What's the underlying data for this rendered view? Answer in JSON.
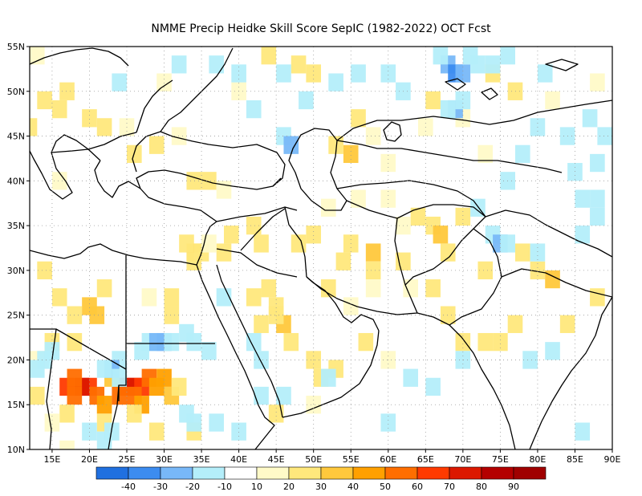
{
  "title": "NMME Precip Heidke Skill Score SepIC (1982-2022) OCT Fcst",
  "map": {
    "lon_range": [
      12,
      90
    ],
    "lat_range": [
      10,
      55
    ],
    "lon_ticks": [
      {
        "value": 15,
        "label": "15E"
      },
      {
        "value": 20,
        "label": "20E"
      },
      {
        "value": 25,
        "label": "25E"
      },
      {
        "value": 30,
        "label": "30E"
      },
      {
        "value": 35,
        "label": "35E"
      },
      {
        "value": 40,
        "label": "40E"
      },
      {
        "value": 45,
        "label": "45E"
      },
      {
        "value": 50,
        "label": "50E"
      },
      {
        "value": 55,
        "label": "55E"
      },
      {
        "value": 60,
        "label": "60E"
      },
      {
        "value": 65,
        "label": "65E"
      },
      {
        "value": 70,
        "label": "70E"
      },
      {
        "value": 75,
        "label": "75E"
      },
      {
        "value": 80,
        "label": "80E"
      },
      {
        "value": 85,
        "label": "85E"
      },
      {
        "value": 90,
        "label": "90E"
      }
    ],
    "lat_ticks": [
      {
        "value": 10,
        "label": "10N"
      },
      {
        "value": 15,
        "label": "15N"
      },
      {
        "value": 20,
        "label": "20N"
      },
      {
        "value": 25,
        "label": "25N"
      },
      {
        "value": 30,
        "label": "30N"
      },
      {
        "value": 35,
        "label": "35N"
      },
      {
        "value": 40,
        "label": "40N"
      },
      {
        "value": 45,
        "label": "45N"
      },
      {
        "value": 50,
        "label": "50N"
      },
      {
        "value": 55,
        "label": "55N"
      }
    ],
    "colors": {
      "-40": "#2070e0",
      "-30": "#3c8cf0",
      "-20": "#78b8f8",
      "-10": "#b4eefa",
      "10": "#fffac8",
      "20": "#ffe87c",
      "30": "#ffc83c",
      "40": "#ffa000",
      "50": "#ff6e00",
      "60": "#ff3a00",
      "70": "#dc1800",
      "80": "#b40000"
    },
    "cells": [
      [
        55,
        33,
        20
      ],
      [
        58,
        32,
        30
      ],
      [
        58,
        30,
        20
      ],
      [
        54,
        31,
        20
      ],
      [
        52,
        28,
        20
      ],
      [
        62,
        31,
        20
      ],
      [
        48,
        33,
        20
      ],
      [
        50,
        34,
        20
      ],
      [
        45,
        26,
        20
      ],
      [
        46,
        24,
        30
      ],
      [
        45,
        25,
        20
      ],
      [
        47,
        22,
        20
      ],
      [
        43,
        24,
        20
      ],
      [
        44,
        28,
        20
      ],
      [
        42,
        27,
        20
      ],
      [
        66,
        35,
        20
      ],
      [
        67,
        34,
        30
      ],
      [
        70,
        36,
        20
      ],
      [
        64,
        36,
        20
      ],
      [
        68,
        32,
        20
      ],
      [
        38,
        32,
        20
      ],
      [
        43,
        33,
        20
      ],
      [
        39,
        34,
        20
      ],
      [
        42,
        35,
        20
      ],
      [
        56,
        38,
        10
      ],
      [
        60,
        38,
        10
      ],
      [
        52,
        37,
        10
      ],
      [
        62,
        35,
        10
      ],
      [
        63,
        28,
        10
      ],
      [
        58,
        28,
        10
      ],
      [
        66,
        28,
        20
      ],
      [
        68,
        25,
        20
      ],
      [
        55,
        26,
        10
      ],
      [
        73,
        30,
        20
      ],
      [
        78,
        32,
        20
      ],
      [
        80,
        30,
        20
      ],
      [
        82,
        29,
        30
      ],
      [
        73,
        22,
        20
      ],
      [
        75,
        22,
        20
      ],
      [
        70,
        22,
        20
      ],
      [
        77,
        24,
        20
      ],
      [
        84,
        24,
        20
      ],
      [
        88,
        27,
        20
      ],
      [
        50,
        20,
        20
      ],
      [
        53,
        19,
        20
      ],
      [
        51,
        18,
        20
      ],
      [
        57,
        22,
        20
      ],
      [
        60,
        20,
        10
      ],
      [
        45,
        14,
        20
      ],
      [
        50,
        15,
        10
      ],
      [
        20,
        17,
        60
      ],
      [
        19,
        17,
        70
      ],
      [
        17,
        17,
        60
      ],
      [
        21,
        16,
        50
      ],
      [
        18,
        18,
        50
      ],
      [
        22,
        15,
        40
      ],
      [
        18,
        16,
        50
      ],
      [
        25,
        17,
        60
      ],
      [
        26,
        17,
        70
      ],
      [
        27,
        17,
        60
      ],
      [
        28,
        18,
        50
      ],
      [
        26,
        16,
        50
      ],
      [
        29,
        17,
        40
      ],
      [
        30,
        18,
        40
      ],
      [
        24,
        16,
        50
      ],
      [
        27,
        15,
        40
      ],
      [
        31,
        16,
        30
      ],
      [
        32,
        17,
        20
      ],
      [
        23,
        18,
        30
      ],
      [
        18,
        25,
        20
      ],
      [
        20,
        26,
        30
      ],
      [
        21,
        25,
        30
      ],
      [
        16,
        27,
        20
      ],
      [
        14,
        30,
        20
      ],
      [
        22,
        28,
        20
      ],
      [
        18,
        22,
        20
      ],
      [
        15,
        22,
        20
      ],
      [
        13,
        16,
        20
      ],
      [
        17,
        14,
        20
      ],
      [
        22,
        13,
        20
      ],
      [
        26,
        14,
        20
      ],
      [
        29,
        12,
        20
      ],
      [
        34,
        12,
        20
      ],
      [
        17,
        10,
        10
      ],
      [
        13,
        20,
        10
      ],
      [
        15,
        13,
        10
      ],
      [
        31,
        25,
        20
      ],
      [
        28,
        27,
        10
      ],
      [
        31,
        27,
        20
      ],
      [
        34,
        32,
        30
      ],
      [
        35,
        32,
        20
      ],
      [
        36,
        33,
        10
      ],
      [
        33,
        33,
        20
      ],
      [
        34,
        31,
        20
      ],
      [
        14,
        49,
        20
      ],
      [
        17,
        50,
        20
      ],
      [
        16,
        48,
        20
      ],
      [
        20,
        47,
        20
      ],
      [
        22,
        46,
        20
      ],
      [
        26,
        43,
        20
      ],
      [
        29,
        44,
        20
      ],
      [
        25,
        46,
        10
      ],
      [
        12,
        46,
        20
      ],
      [
        32,
        45,
        10
      ],
      [
        16,
        40,
        10
      ],
      [
        34,
        40,
        20
      ],
      [
        36,
        40,
        20
      ],
      [
        38,
        39,
        10
      ],
      [
        55,
        43,
        30
      ],
      [
        53,
        44,
        20
      ],
      [
        56,
        47,
        20
      ],
      [
        58,
        45,
        10
      ],
      [
        60,
        42,
        10
      ],
      [
        50,
        52,
        20
      ],
      [
        48,
        53,
        20
      ],
      [
        44,
        54,
        20
      ],
      [
        66,
        49,
        20
      ],
      [
        74,
        52,
        20
      ],
      [
        77,
        50,
        20
      ],
      [
        65,
        46,
        10
      ],
      [
        70,
        47,
        10
      ],
      [
        73,
        43,
        10
      ],
      [
        82,
        49,
        10
      ],
      [
        40,
        50,
        10
      ],
      [
        30,
        51,
        10
      ],
      [
        13,
        54,
        10
      ],
      [
        88,
        51,
        10
      ],
      [
        68,
        53,
        -20
      ],
      [
        69,
        52,
        -30
      ],
      [
        70,
        52,
        -20
      ],
      [
        67,
        54,
        -10
      ],
      [
        71,
        54,
        -10
      ],
      [
        72,
        53,
        -10
      ],
      [
        69,
        48,
        -20
      ],
      [
        68,
        48,
        -10
      ],
      [
        70,
        49,
        -10
      ],
      [
        74,
        53,
        -10
      ],
      [
        76,
        54,
        -10
      ],
      [
        81,
        52,
        -10
      ],
      [
        80,
        46,
        -10
      ],
      [
        84,
        45,
        -10
      ],
      [
        87,
        47,
        -10
      ],
      [
        89,
        45,
        -10
      ],
      [
        88,
        42,
        -10
      ],
      [
        85,
        41,
        -10
      ],
      [
        86,
        38,
        -10
      ],
      [
        88,
        38,
        -10
      ],
      [
        78,
        43,
        -10
      ],
      [
        76,
        40,
        -10
      ],
      [
        72,
        37,
        -10
      ],
      [
        74,
        34,
        -10
      ],
      [
        75,
        33,
        -20
      ],
      [
        76,
        33,
        -10
      ],
      [
        80,
        32,
        -10
      ],
      [
        86,
        34,
        -10
      ],
      [
        88,
        36,
        -10
      ],
      [
        60,
        52,
        -10
      ],
      [
        62,
        50,
        -10
      ],
      [
        56,
        52,
        -10
      ],
      [
        46,
        45,
        -10
      ],
      [
        47,
        44,
        -20
      ],
      [
        40,
        52,
        -10
      ],
      [
        32,
        53,
        -10
      ],
      [
        37,
        53,
        -10
      ],
      [
        53,
        51,
        -10
      ],
      [
        24,
        51,
        -10
      ],
      [
        46,
        52,
        -10
      ],
      [
        49,
        49,
        -10
      ],
      [
        42,
        48,
        -10
      ],
      [
        28,
        22,
        -10
      ],
      [
        29,
        22,
        -20
      ],
      [
        30,
        22,
        -20
      ],
      [
        31,
        22,
        -10
      ],
      [
        27,
        21,
        -10
      ],
      [
        24,
        20,
        -10
      ],
      [
        23,
        19,
        -20
      ],
      [
        24,
        18,
        -10
      ],
      [
        22,
        19,
        -10
      ],
      [
        33,
        23,
        -10
      ],
      [
        34,
        22,
        -10
      ],
      [
        36,
        21,
        -10
      ],
      [
        33,
        14,
        -10
      ],
      [
        34,
        13,
        -10
      ],
      [
        22,
        11,
        -10
      ],
      [
        20,
        12,
        -10
      ],
      [
        23,
        12,
        -10
      ],
      [
        14,
        20,
        -10
      ],
      [
        13,
        19,
        -10
      ],
      [
        15,
        21,
        -10
      ],
      [
        42,
        22,
        -10
      ],
      [
        43,
        20,
        -10
      ],
      [
        37,
        13,
        -10
      ],
      [
        40,
        12,
        -10
      ],
      [
        46,
        16,
        -10
      ],
      [
        52,
        18,
        -10
      ],
      [
        63,
        18,
        -10
      ],
      [
        66,
        17,
        -10
      ],
      [
        70,
        20,
        -10
      ],
      [
        79,
        20,
        -10
      ],
      [
        82,
        21,
        -10
      ],
      [
        38,
        27,
        -10
      ],
      [
        86,
        12,
        -10
      ],
      [
        60,
        13,
        -10
      ],
      [
        43,
        16,
        -10
      ]
    ]
  },
  "colorbar": {
    "labels": [
      {
        "after": 0,
        "label": "-40"
      },
      {
        "after": 1,
        "label": "-30"
      },
      {
        "after": 2,
        "label": "-20"
      },
      {
        "after": 3,
        "label": "-10"
      },
      {
        "after": 4,
        "label": "10"
      },
      {
        "after": 5,
        "label": "20"
      },
      {
        "after": 6,
        "label": "30"
      },
      {
        "after": 7,
        "label": "40"
      },
      {
        "after": 8,
        "label": "50"
      },
      {
        "after": 9,
        "label": "60"
      },
      {
        "after": 10,
        "label": "70"
      },
      {
        "after": 11,
        "label": "80"
      },
      {
        "after": 12,
        "label": "90"
      }
    ],
    "colors": [
      "#2070e0",
      "#3c8cf0",
      "#78b8f8",
      "#b4eefa",
      "#ffffff",
      "#fffac8",
      "#ffe87c",
      "#ffc83c",
      "#ffa000",
      "#ff6e00",
      "#ff3a00",
      "#dc1800",
      "#b40000",
      "#a00000"
    ]
  }
}
